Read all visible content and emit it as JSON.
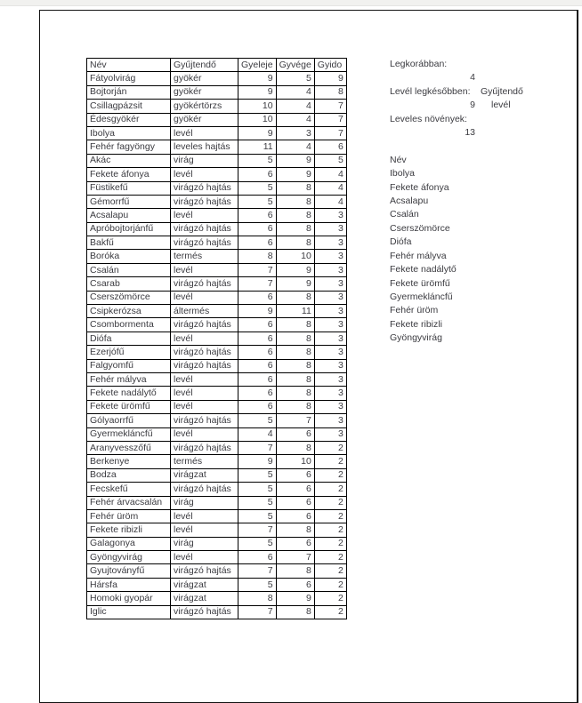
{
  "table": {
    "headers": [
      "Név",
      "Gyűjtendő",
      "Gyeleje",
      "Gyvége",
      "Gyido"
    ],
    "rows": [
      [
        "Fátyolvirág",
        "gyökér",
        9,
        5,
        9
      ],
      [
        "Bojtorján",
        "gyökér",
        9,
        4,
        8
      ],
      [
        "Csillagpázsit",
        "gyökértörzs",
        10,
        4,
        7
      ],
      [
        "Édesgyökér",
        "gyökér",
        10,
        4,
        7
      ],
      [
        "Ibolya",
        "levél",
        9,
        3,
        7
      ],
      [
        "Fehér fagyöngy",
        "leveles hajtás",
        11,
        4,
        6
      ],
      [
        "Akác",
        "virág",
        5,
        9,
        5
      ],
      [
        "Fekete áfonya",
        "levél",
        6,
        9,
        4
      ],
      [
        "Füstikefű",
        "virágzó hajtás",
        5,
        8,
        4
      ],
      [
        "Gémorrfű",
        "virágzó hajtás",
        5,
        8,
        4
      ],
      [
        "Acsalapu",
        "levél",
        6,
        8,
        3
      ],
      [
        "Apróbojtorjánfű",
        "virágzó hajtás",
        6,
        8,
        3
      ],
      [
        "Bakfű",
        "virágzó hajtás",
        6,
        8,
        3
      ],
      [
        "Boróka",
        "termés",
        8,
        10,
        3
      ],
      [
        "Csalán",
        "levél",
        7,
        9,
        3
      ],
      [
        "Csarab",
        "virágzó hajtás",
        7,
        9,
        3
      ],
      [
        "Cserszömörce",
        "levél",
        6,
        8,
        3
      ],
      [
        "Csipkerózsa",
        "áltermés",
        9,
        11,
        3
      ],
      [
        "Csombormenta",
        "virágzó hajtás",
        6,
        8,
        3
      ],
      [
        "Diófa",
        "levél",
        6,
        8,
        3
      ],
      [
        "Ezerjófű",
        "virágzó hajtás",
        6,
        8,
        3
      ],
      [
        "Falgyomfű",
        "virágzó hajtás",
        6,
        8,
        3
      ],
      [
        "Fehér mályva",
        "levél",
        6,
        8,
        3
      ],
      [
        "Fekete nadálytő",
        "levél",
        6,
        8,
        3
      ],
      [
        "Fekete ürömfű",
        "levél",
        6,
        8,
        3
      ],
      [
        "Gólyaorrfű",
        "virágzó hajtás",
        5,
        7,
        3
      ],
      [
        "Gyermekláncfű",
        "levél",
        4,
        6,
        3
      ],
      [
        "Aranyvesszőfű",
        "virágzó hajtás",
        7,
        8,
        2
      ],
      [
        "Berkenye",
        "termés",
        9,
        10,
        2
      ],
      [
        "Bodza",
        "virágzat",
        5,
        6,
        2
      ],
      [
        "Fecskefű",
        "virágzó hajtás",
        5,
        6,
        2
      ],
      [
        "Fehér árvacsalán",
        "virág",
        5,
        6,
        2
      ],
      [
        "Fehér üröm",
        "levél",
        5,
        6,
        2
      ],
      [
        "Fekete ribizli",
        "levél",
        7,
        8,
        2
      ],
      [
        "Galagonya",
        "virág",
        5,
        6,
        2
      ],
      [
        "Gyöngyvirág",
        "levél",
        6,
        7,
        2
      ],
      [
        "Gyujtoványfű",
        "virágzó hajtás",
        7,
        8,
        2
      ],
      [
        "Hársfa",
        "virágzat",
        5,
        6,
        2
      ],
      [
        "Homoki gyopár",
        "virágzat",
        8,
        9,
        2
      ],
      [
        "Iglic",
        "virágzó hajtás",
        7,
        8,
        2
      ]
    ]
  },
  "side": {
    "earliest_label": "Legkorábban:",
    "earliest_value": "4",
    "latest_label": "Levél legkésőbben:",
    "latest_col_header": "Gyűjtendő",
    "latest_value": "9",
    "latest_value_text": "levél",
    "leafy_label": "Leveles növények:",
    "leafy_value": "13",
    "list_header": "Név",
    "list": [
      "Ibolya",
      "Fekete áfonya",
      "Acsalapu",
      "Csalán",
      "Cserszömörce",
      "Diófa",
      "Fehér mályva",
      "Fekete nadálytő",
      "Fekete ürömfű",
      "Gyermekláncfű",
      "Fehér üröm",
      "Fekete ribizli",
      "Gyöngyvirág"
    ]
  }
}
